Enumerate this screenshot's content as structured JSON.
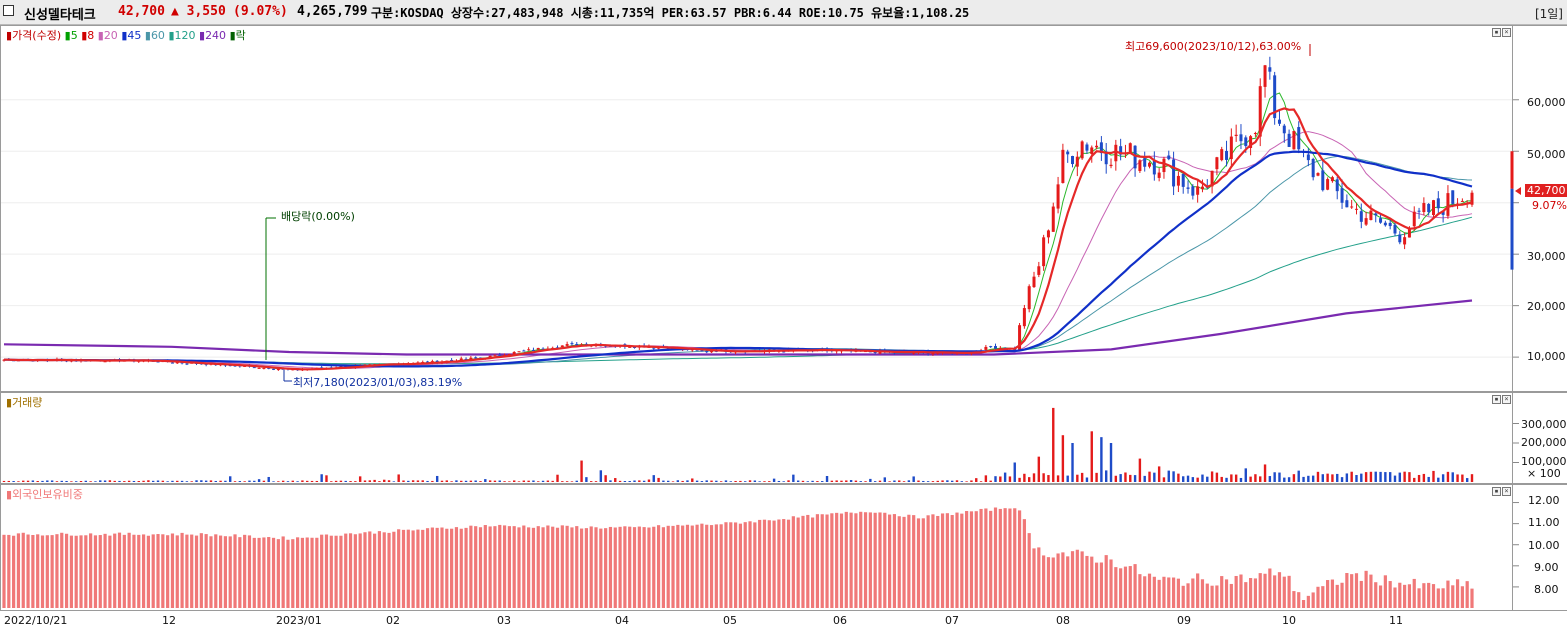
{
  "header": {
    "name": "신성델타테크",
    "price": "42,700",
    "change": "▲ 3,550",
    "change_pct": "(9.07%)",
    "volume": "4,265,799",
    "info": "구분:KOSDAQ 상장수:27,483,948 시총:11,735억 PER:63.57 PBR:6.44 ROE:10.75 유보율:1,108.25",
    "period": "[1일]"
  },
  "colors": {
    "up": "#e41a1a",
    "down": "#1e4bc8",
    "ma5": "#2ab82a",
    "ma8": "#e52828",
    "ma20": "#c864b4",
    "ma45": "#1030c8",
    "ma60": "#4a96a8",
    "ma120": "#23a08a",
    "ma240": "#7a2ab0",
    "foreign": "#f07878"
  },
  "legend_price": {
    "items": [
      {
        "label": "가격(수정)",
        "color": "#c00000"
      },
      {
        "label": "5",
        "color": "#00a000"
      },
      {
        "label": "8",
        "color": "#d00000"
      },
      {
        "label": "20",
        "color": "#c864b4"
      },
      {
        "label": "45",
        "color": "#1030c8"
      },
      {
        "label": "60",
        "color": "#4a96a8"
      },
      {
        "label": "120",
        "color": "#23a08a"
      },
      {
        "label": "240",
        "color": "#7a2ab0"
      },
      {
        "label": "락",
        "color": "#006000"
      }
    ]
  },
  "legend_volume": {
    "label": "거래량"
  },
  "legend_foreign": {
    "label": "외국인보유비중"
  },
  "annotations": {
    "high": "최고69,600(2023/10/12),63.00%",
    "low": "최저7,180(2023/01/03),83.19%",
    "dividend": "배당락(0.00%)",
    "price_tag": "42,700",
    "pct_tag": "9.07%"
  },
  "axes": {
    "price_ticks": [
      "60,000",
      "50,000",
      "40,000",
      "30,000",
      "20,000",
      "10,000"
    ],
    "volume_ticks": [
      "300,000",
      "200,000",
      "100,000",
      "× 100"
    ],
    "foreign_ticks": [
      "12.00",
      "11.00",
      "10.00",
      "9.00",
      "8.00"
    ],
    "x_ticks": [
      "2022/10/21",
      "12",
      "2023/01",
      "02",
      "03",
      "04",
      "05",
      "06",
      "07",
      "08",
      "09",
      "10",
      "11"
    ]
  },
  "chart_data": {
    "type": "line",
    "title": "",
    "x": [
      "2022/10/21",
      "12",
      "2023/01",
      "02",
      "03",
      "04",
      "05",
      "06",
      "07",
      "08",
      "09",
      "10",
      "11"
    ],
    "series": [
      {
        "name": "가격(수정)",
        "values": [
          9500,
          9000,
          7800,
          8500,
          10500,
          12500,
          11000,
          11500,
          11000,
          48000,
          50000,
          57000,
          38000
        ]
      },
      {
        "name": "240",
        "values": [
          12500,
          12000,
          11000,
          10500,
          10500,
          10500,
          10500,
          10500,
          10500,
          11500,
          14500,
          18500,
          21000
        ]
      }
    ],
    "price_ylim": [
      4000,
      72000
    ],
    "high": {
      "date": "2023/10/12",
      "value": 69600
    },
    "low": {
      "date": "2023/01/03",
      "value": 7180
    },
    "last": 42700,
    "volume_ylim": [
      0,
      400000
    ],
    "foreign_ylim": [
      7.0,
      12.5
    ]
  }
}
